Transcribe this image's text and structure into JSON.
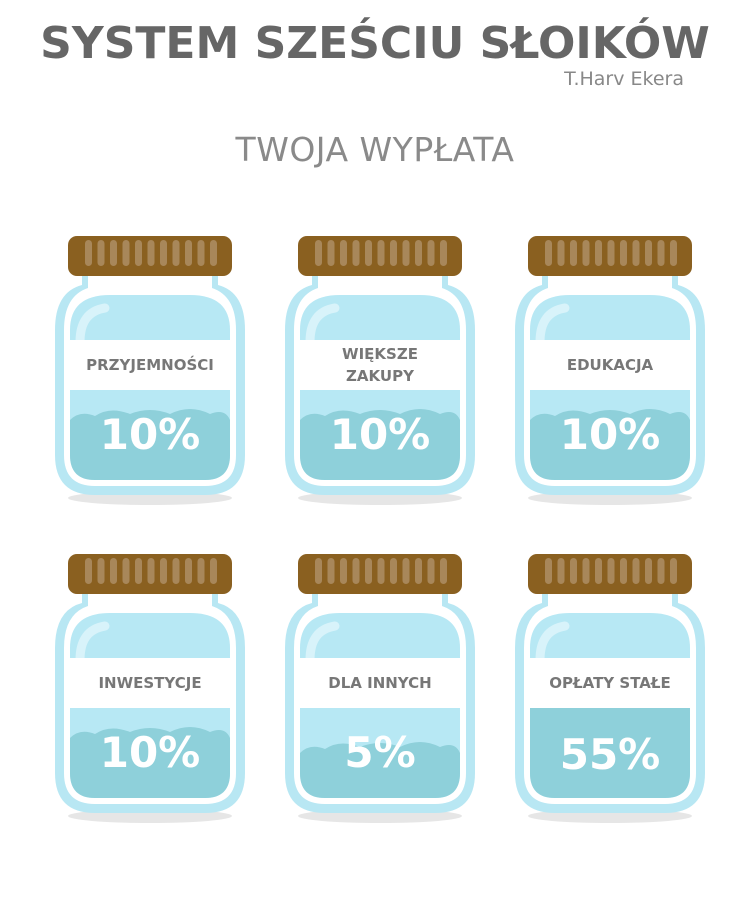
{
  "header": {
    "title": "SYSTEM SZEŚCIU SŁOIKÓW",
    "author": "T.Harv Ekera",
    "subtitle": "TWOJA WYPŁATA"
  },
  "colors": {
    "lid": "#8a6020",
    "lid_ridge": "#a8875a",
    "glass_outline": "#b8e7f3",
    "glass": "#b7e8f4",
    "liquid": "#8ed0da",
    "label_bg": "#ffffff",
    "text": "#777777"
  },
  "jars": [
    {
      "label": "PRZYJEMNOŚCI",
      "percent": "10%",
      "value": 10
    },
    {
      "label": "WIĘKSZE ZAKUPY",
      "percent": "10%",
      "value": 10
    },
    {
      "label": "EDUKACJA",
      "percent": "10%",
      "value": 10
    },
    {
      "label": "INWESTYCJE",
      "percent": "10%",
      "value": 10
    },
    {
      "label": "DLA INNYCH",
      "percent": "5%",
      "value": 5
    },
    {
      "label": "OPŁATY STAŁE",
      "percent": "55%",
      "value": 55
    }
  ]
}
